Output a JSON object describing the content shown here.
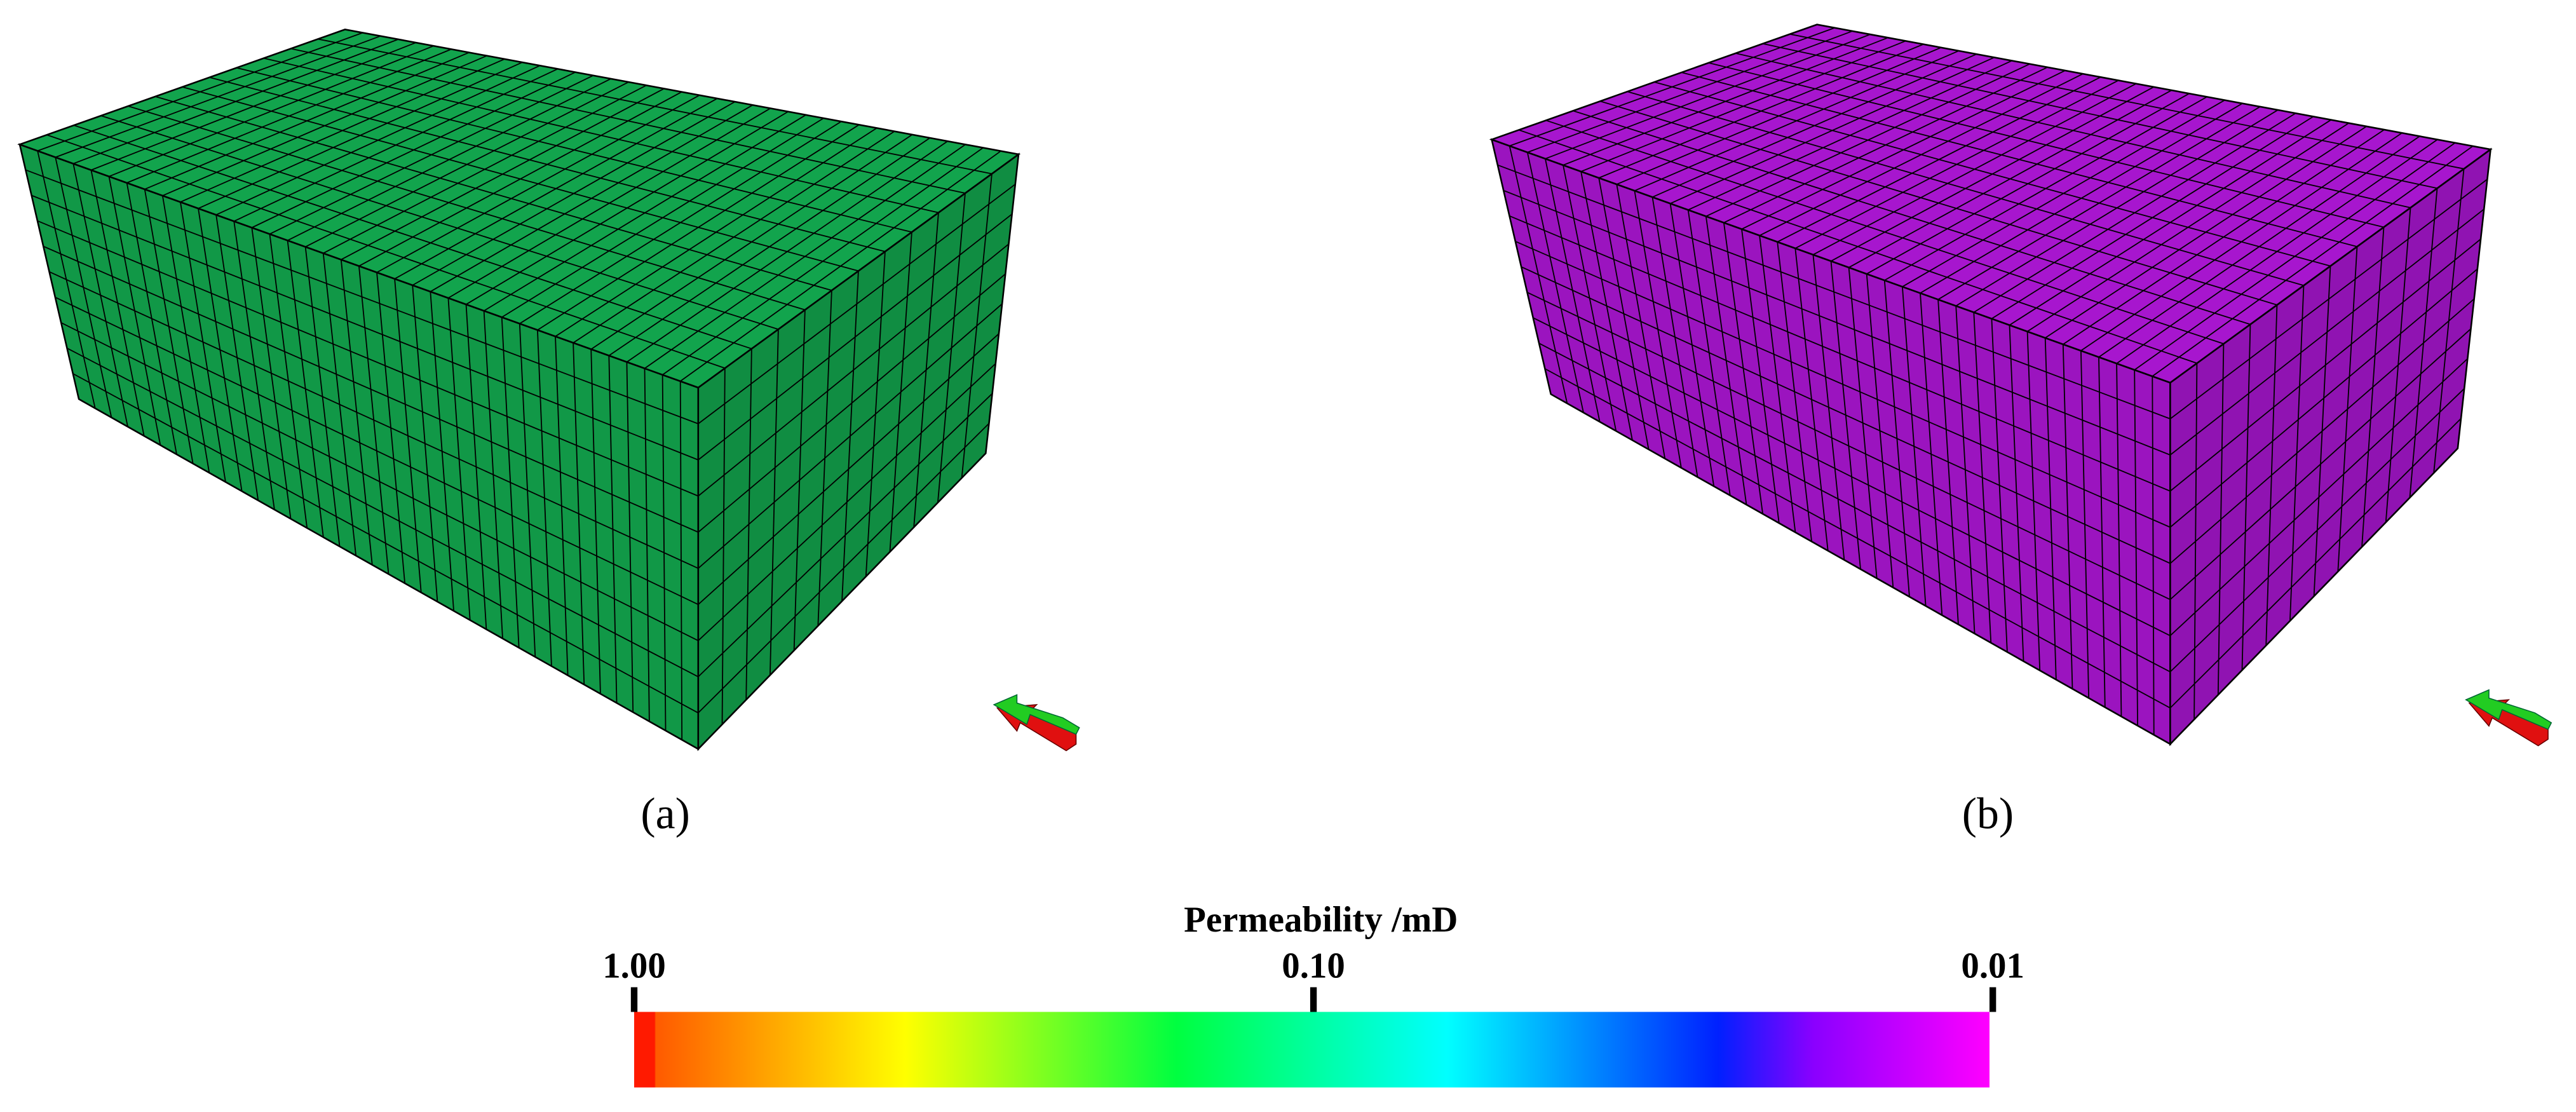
{
  "panels": [
    {
      "label": "(a)",
      "color": "#119847"
    },
    {
      "label": "(b)",
      "color": "#9b14bf"
    }
  ],
  "colorbar": {
    "title": "Permeability /mD",
    "log_scale": true,
    "lim": [
      1,
      0.01
    ],
    "ticks": [
      {
        "value": 1,
        "label": "1.00"
      },
      {
        "value": 0.1,
        "label": "0.10"
      },
      {
        "value": 0.01,
        "label": "0.01"
      }
    ]
  }
}
